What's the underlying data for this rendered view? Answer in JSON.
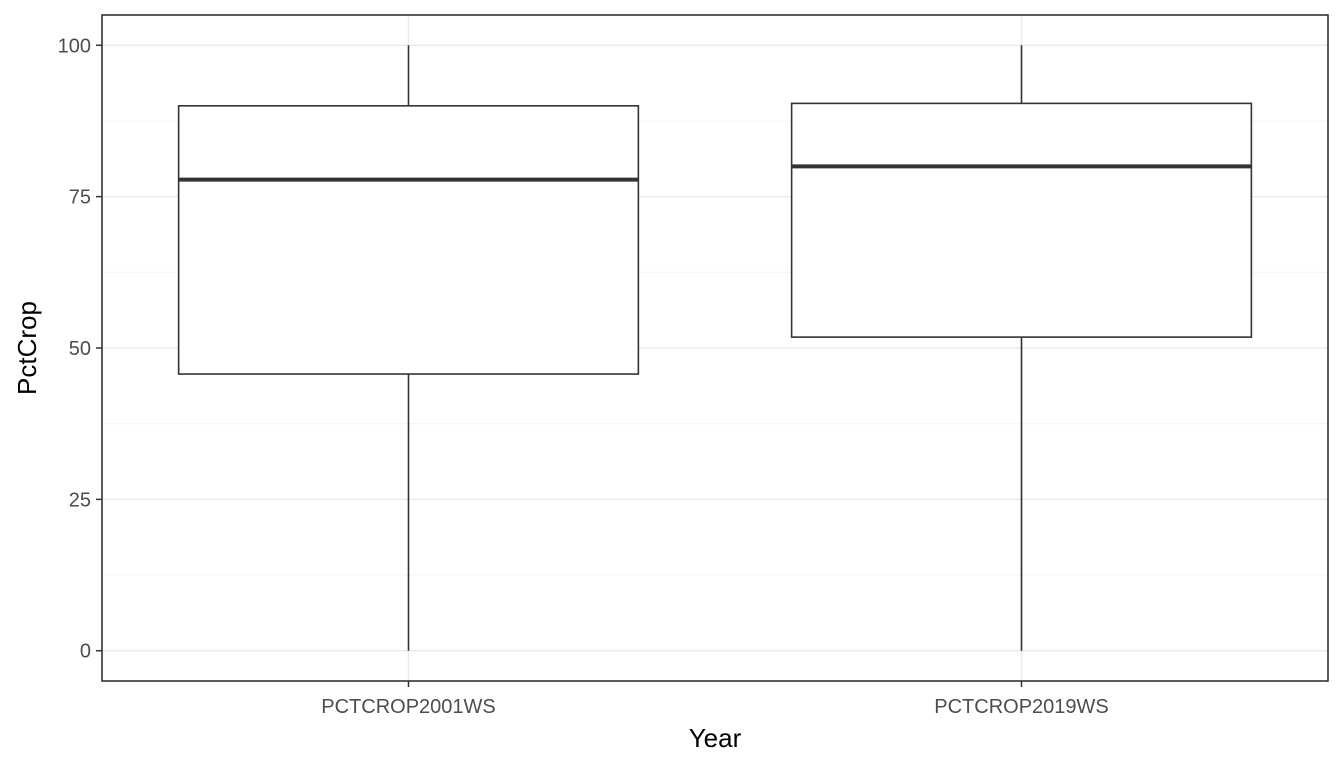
{
  "chart_data": {
    "type": "box",
    "title": "",
    "xlabel": "Year",
    "ylabel": "PctCrop",
    "ylim": [
      -5,
      105
    ],
    "y_ticks": [
      0,
      25,
      50,
      75,
      100
    ],
    "y_tick_labels": [
      "0",
      "25",
      "50",
      "75",
      "100"
    ],
    "grid": true,
    "categories": [
      "PCTCROP2001WS",
      "PCTCROP2019WS"
    ],
    "boxes": [
      {
        "category": "PCTCROP2001WS",
        "min": 0,
        "q1": 45.7,
        "median": 77.8,
        "q3": 90.0,
        "max": 100
      },
      {
        "category": "PCTCROP2019WS",
        "min": 0,
        "q1": 51.8,
        "median": 80.0,
        "q3": 90.4,
        "max": 100
      }
    ],
    "colors": {
      "background": "#ffffff",
      "panel_border": "#333333",
      "grid_major": "#ebebeb",
      "grid_minor": "#f5f5f5",
      "box_stroke": "#333333"
    }
  }
}
